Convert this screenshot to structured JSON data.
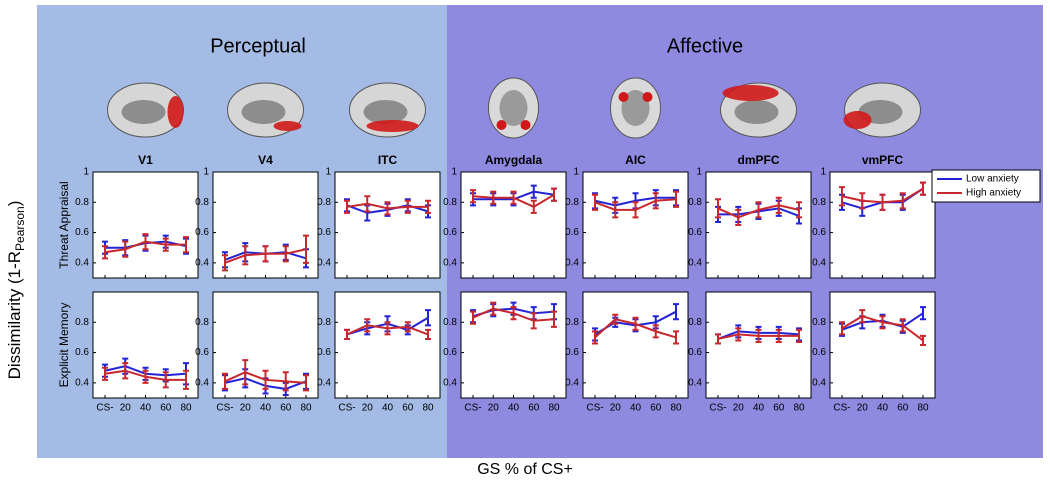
{
  "header": {
    "left": "Perceptual",
    "right": "Affective"
  },
  "ylabel": "Dissimilarity (1-R",
  "ylabel_sub": "Pearson",
  "ylabel_end": ")",
  "xlabel": "GS % of CS+",
  "legend": [
    "Low anxiety",
    "High anxiety"
  ],
  "chart_data": [
    {
      "type": "line",
      "title": "V1",
      "ylabel": "Threat Appraisal",
      "ylim": [
        0.3,
        1
      ],
      "yticks": [
        0.4,
        0.6,
        0.8,
        1
      ],
      "series": [
        {
          "color": "#2323d6",
          "values": [
            0.5,
            0.5,
            0.53,
            0.54,
            0.51
          ],
          "errors": [
            0.04,
            0.05,
            0.05,
            0.04,
            0.05
          ]
        },
        {
          "color": "#c8282d",
          "values": [
            0.47,
            0.49,
            0.54,
            0.52,
            0.52
          ],
          "errors": [
            0.04,
            0.05,
            0.05,
            0.04,
            0.05
          ]
        }
      ]
    },
    {
      "type": "line",
      "title": "V4",
      "ylim": [
        0.3,
        1
      ],
      "yticks": [
        0.4,
        0.6,
        0.8,
        1
      ],
      "series": [
        {
          "color": "#2323d6",
          "values": [
            0.42,
            0.47,
            0.46,
            0.47,
            0.43
          ],
          "errors": [
            0.05,
            0.06,
            0.05,
            0.05,
            0.06
          ]
        },
        {
          "color": "#c8282d",
          "values": [
            0.4,
            0.45,
            0.46,
            0.46,
            0.49
          ],
          "errors": [
            0.05,
            0.06,
            0.05,
            0.05,
            0.09
          ]
        }
      ]
    },
    {
      "type": "line",
      "title": "ITC",
      "ylim": [
        0.3,
        1
      ],
      "yticks": [
        0.4,
        0.6,
        0.8,
        1
      ],
      "series": [
        {
          "color": "#2323d6",
          "values": [
            0.78,
            0.73,
            0.75,
            0.78,
            0.74
          ],
          "errors": [
            0.04,
            0.05,
            0.04,
            0.04,
            0.04
          ]
        },
        {
          "color": "#c8282d",
          "values": [
            0.77,
            0.79,
            0.76,
            0.77,
            0.77
          ],
          "errors": [
            0.04,
            0.05,
            0.04,
            0.04,
            0.04
          ]
        }
      ]
    },
    {
      "type": "line",
      "title": "Amygdala",
      "ylim": [
        0.3,
        1
      ],
      "yticks": [
        0.4,
        0.6,
        0.8,
        1
      ],
      "series": [
        {
          "color": "#2323d6",
          "values": [
            0.82,
            0.82,
            0.82,
            0.87,
            0.85
          ],
          "errors": [
            0.04,
            0.04,
            0.04,
            0.04,
            0.04
          ]
        },
        {
          "color": "#c8282d",
          "values": [
            0.84,
            0.83,
            0.83,
            0.77,
            0.85
          ],
          "errors": [
            0.04,
            0.04,
            0.04,
            0.04,
            0.04
          ]
        }
      ]
    },
    {
      "type": "line",
      "title": "AIC",
      "ylim": [
        0.3,
        1
      ],
      "yticks": [
        0.4,
        0.6,
        0.8,
        1
      ],
      "series": [
        {
          "color": "#2323d6",
          "values": [
            0.81,
            0.78,
            0.81,
            0.83,
            0.83
          ],
          "errors": [
            0.05,
            0.05,
            0.05,
            0.05,
            0.05
          ]
        },
        {
          "color": "#c8282d",
          "values": [
            0.8,
            0.75,
            0.75,
            0.81,
            0.82
          ],
          "errors": [
            0.05,
            0.05,
            0.05,
            0.05,
            0.05
          ]
        }
      ]
    },
    {
      "type": "line",
      "title": "dmPFC",
      "ylim": [
        0.3,
        1
      ],
      "yticks": [
        0.4,
        0.6,
        0.8,
        1
      ],
      "series": [
        {
          "color": "#2323d6",
          "values": [
            0.72,
            0.72,
            0.74,
            0.76,
            0.71
          ],
          "errors": [
            0.05,
            0.05,
            0.05,
            0.05,
            0.05
          ]
        },
        {
          "color": "#c8282d",
          "values": [
            0.76,
            0.7,
            0.75,
            0.78,
            0.75
          ],
          "errors": [
            0.06,
            0.05,
            0.05,
            0.05,
            0.05
          ]
        }
      ]
    },
    {
      "type": "line",
      "title": "vmPFC",
      "ylim": [
        0.3,
        1
      ],
      "yticks": [
        0.4,
        0.6,
        0.8,
        1
      ],
      "series": [
        {
          "color": "#2323d6",
          "values": [
            0.8,
            0.76,
            0.8,
            0.8,
            0.89
          ],
          "errors": [
            0.05,
            0.05,
            0.05,
            0.05,
            0.04
          ]
        },
        {
          "color": "#c8282d",
          "values": [
            0.84,
            0.81,
            0.8,
            0.81,
            0.89
          ],
          "errors": [
            0.06,
            0.05,
            0.05,
            0.05,
            0.04
          ]
        }
      ]
    },
    {
      "type": "line",
      "ylabel": "Explicit Memory",
      "categories": [
        "CS-",
        "20",
        "40",
        "60",
        "80"
      ],
      "ylim": [
        0.3,
        1
      ],
      "yticks": [
        0.4,
        0.6,
        0.8
      ],
      "series": [
        {
          "color": "#2323d6",
          "values": [
            0.48,
            0.51,
            0.46,
            0.45,
            0.46
          ],
          "errors": [
            0.04,
            0.05,
            0.04,
            0.04,
            0.07
          ]
        },
        {
          "color": "#c8282d",
          "values": [
            0.46,
            0.48,
            0.44,
            0.42,
            0.42
          ],
          "errors": [
            0.04,
            0.05,
            0.04,
            0.05,
            0.06
          ]
        }
      ]
    },
    {
      "type": "line",
      "categories": [
        "CS-",
        "20",
        "40",
        "60",
        "80"
      ],
      "ylim": [
        0.3,
        1
      ],
      "yticks": [
        0.4,
        0.6,
        0.8
      ],
      "series": [
        {
          "color": "#2323d6",
          "values": [
            0.4,
            0.43,
            0.38,
            0.36,
            0.41
          ],
          "errors": [
            0.05,
            0.06,
            0.05,
            0.04,
            0.05
          ]
        },
        {
          "color": "#c8282d",
          "values": [
            0.41,
            0.47,
            0.42,
            0.41,
            0.4
          ],
          "errors": [
            0.05,
            0.08,
            0.06,
            0.06,
            0.05
          ]
        }
      ]
    },
    {
      "type": "line",
      "categories": [
        "CS-",
        "20",
        "40",
        "60",
        "80"
      ],
      "ylim": [
        0.3,
        1
      ],
      "yticks": [
        0.4,
        0.6,
        0.8
      ],
      "series": [
        {
          "color": "#2323d6",
          "values": [
            0.72,
            0.76,
            0.79,
            0.75,
            0.83
          ],
          "errors": [
            0.03,
            0.04,
            0.05,
            0.03,
            0.05
          ]
        },
        {
          "color": "#c8282d",
          "values": [
            0.72,
            0.78,
            0.76,
            0.77,
            0.72
          ],
          "errors": [
            0.03,
            0.04,
            0.04,
            0.03,
            0.03
          ]
        }
      ]
    },
    {
      "type": "line",
      "categories": [
        "CS-",
        "20",
        "40",
        "60",
        "80"
      ],
      "ylim": [
        0.3,
        1
      ],
      "yticks": [
        0.4,
        0.6,
        0.8
      ],
      "series": [
        {
          "color": "#2323d6",
          "values": [
            0.84,
            0.88,
            0.89,
            0.86,
            0.87
          ],
          "errors": [
            0.04,
            0.04,
            0.04,
            0.04,
            0.05
          ]
        },
        {
          "color": "#c8282d",
          "values": [
            0.83,
            0.89,
            0.86,
            0.81,
            0.82
          ],
          "errors": [
            0.04,
            0.04,
            0.04,
            0.05,
            0.05
          ]
        }
      ]
    },
    {
      "type": "line",
      "categories": [
        "CS-",
        "20",
        "40",
        "60",
        "80"
      ],
      "ylim": [
        0.3,
        1
      ],
      "yticks": [
        0.4,
        0.6,
        0.8
      ],
      "series": [
        {
          "color": "#2323d6",
          "values": [
            0.72,
            0.8,
            0.78,
            0.8,
            0.87
          ],
          "errors": [
            0.04,
            0.03,
            0.04,
            0.04,
            0.05
          ]
        },
        {
          "color": "#c8282d",
          "values": [
            0.7,
            0.82,
            0.79,
            0.74,
            0.7
          ],
          "errors": [
            0.04,
            0.03,
            0.04,
            0.04,
            0.04
          ]
        }
      ]
    },
    {
      "type": "line",
      "categories": [
        "CS-",
        "20",
        "40",
        "60",
        "80"
      ],
      "ylim": [
        0.3,
        1
      ],
      "yticks": [
        0.4,
        0.6,
        0.8
      ],
      "series": [
        {
          "color": "#2323d6",
          "values": [
            0.69,
            0.74,
            0.73,
            0.73,
            0.72
          ],
          "errors": [
            0.03,
            0.04,
            0.04,
            0.04,
            0.04
          ]
        },
        {
          "color": "#c8282d",
          "values": [
            0.69,
            0.72,
            0.71,
            0.71,
            0.71
          ],
          "errors": [
            0.03,
            0.04,
            0.04,
            0.04,
            0.04
          ]
        }
      ]
    },
    {
      "type": "line",
      "categories": [
        "CS-",
        "20",
        "40",
        "60",
        "80"
      ],
      "ylim": [
        0.3,
        1
      ],
      "yticks": [
        0.4,
        0.6,
        0.8
      ],
      "series": [
        {
          "color": "#2323d6",
          "values": [
            0.75,
            0.8,
            0.81,
            0.77,
            0.86
          ],
          "errors": [
            0.04,
            0.04,
            0.04,
            0.04,
            0.04
          ]
        },
        {
          "color": "#c8282d",
          "values": [
            0.76,
            0.84,
            0.8,
            0.78,
            0.68
          ],
          "errors": [
            0.04,
            0.04,
            0.04,
            0.04,
            0.03
          ]
        }
      ]
    }
  ]
}
